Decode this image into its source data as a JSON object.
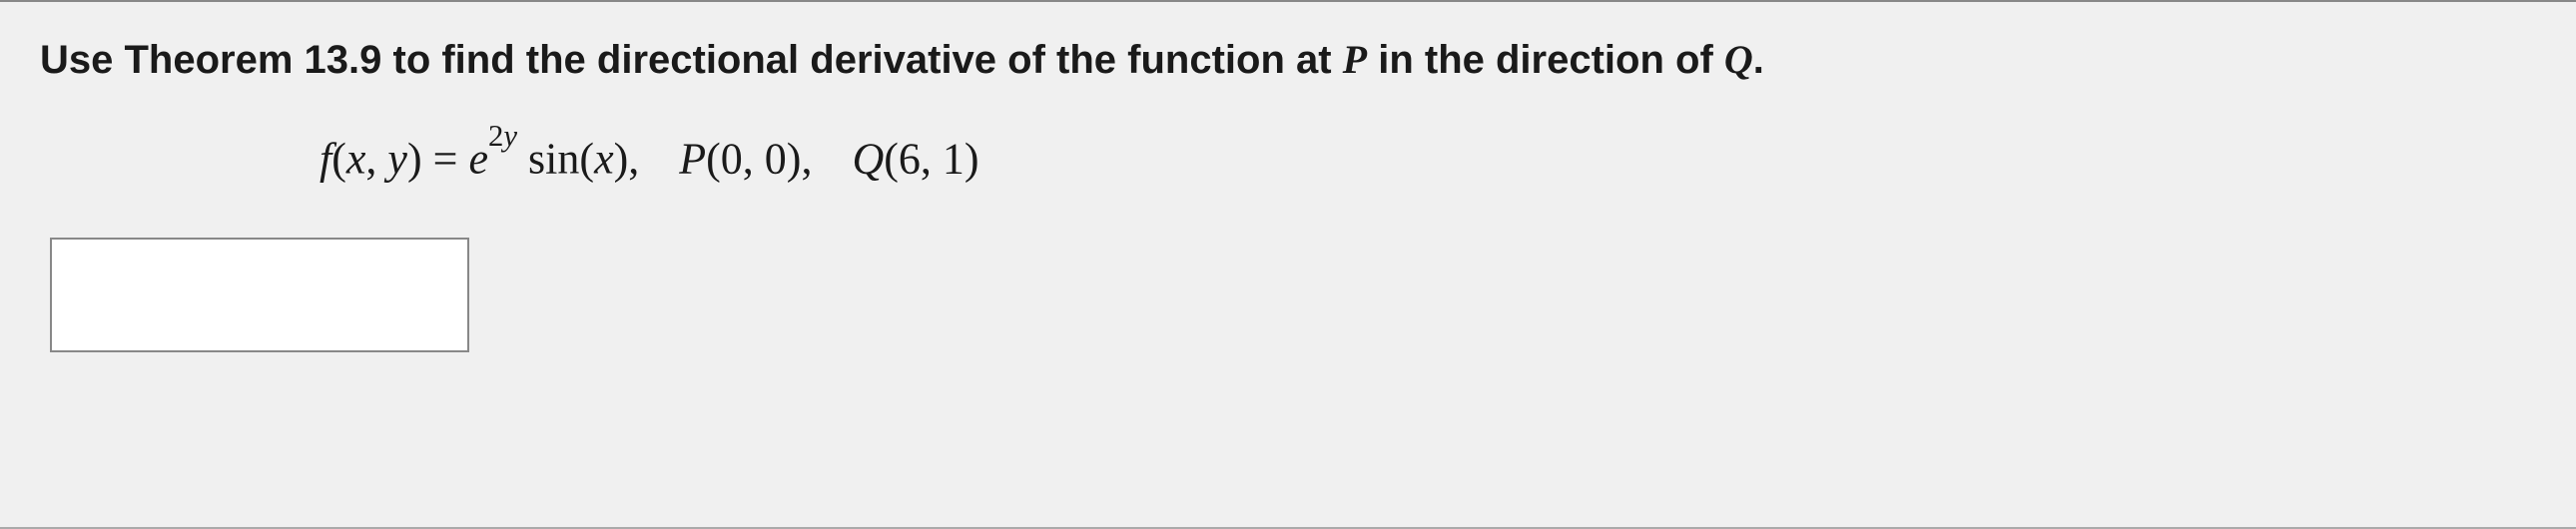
{
  "question": {
    "prefix": "Use Theorem 13.9 to find the directional derivative of the function at ",
    "point_P_var": "P",
    "middle": " in the direction of ",
    "point_Q_var": "Q",
    "suffix": "."
  },
  "math": {
    "func_name": "f",
    "func_args_open": "(",
    "var_x": "x",
    "comma1": ", ",
    "var_y": "y",
    "func_args_close": ")",
    "equals": " = ",
    "base_e": "e",
    "exponent_coef": "2",
    "exponent_var": "y",
    "space1": " ",
    "trig_fn": "sin",
    "trig_open": "(",
    "trig_arg": "x",
    "trig_close": ")",
    "sep1": ",",
    "point_P_label": "P",
    "point_P_open": "(",
    "point_P_x": "0",
    "point_P_sep": ", ",
    "point_P_y": "0",
    "point_P_close": ")",
    "sep2": ",",
    "point_Q_label": "Q",
    "point_Q_open": "(",
    "point_Q_x": "6",
    "point_Q_sep": ", ",
    "point_Q_y": "1",
    "point_Q_close": ")"
  },
  "answer": {
    "value": ""
  },
  "styling": {
    "background_color": "#f0f0f0",
    "text_color": "#1a1a1a",
    "border_color": "#888888",
    "answer_box_bg": "#ffffff",
    "question_fontsize": 40,
    "math_fontsize": 44,
    "font_family_question": "Verdana",
    "font_family_math": "Times New Roman",
    "answer_box_width": 420,
    "answer_box_height": 115
  }
}
